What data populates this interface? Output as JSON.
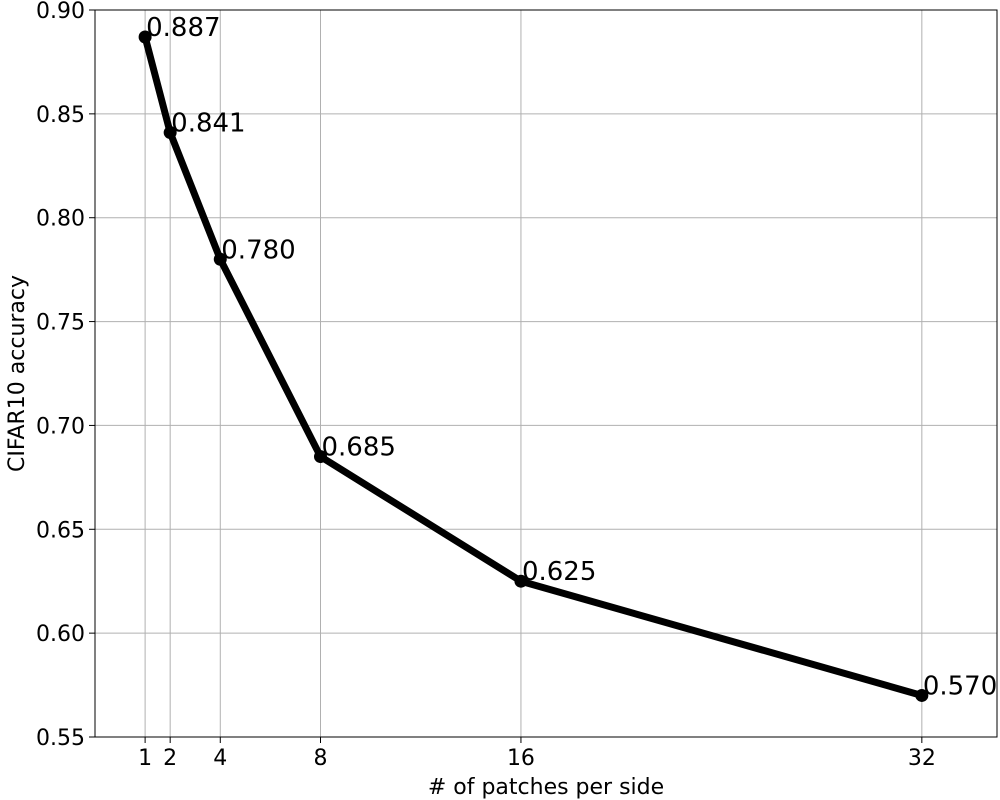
{
  "chart_data": {
    "type": "line",
    "x": [
      1,
      2,
      4,
      8,
      16,
      32
    ],
    "series": [
      {
        "values": [
          0.887,
          0.841,
          0.78,
          0.685,
          0.625,
          0.57
        ],
        "labels": [
          "0.887",
          "0.841",
          "0.780",
          "0.685",
          "0.625",
          "0.570"
        ]
      }
    ],
    "xlabel": "# of patches per side",
    "ylabel": "CIFAR10 accuracy",
    "xticks": [
      1,
      2,
      4,
      8,
      16,
      32
    ],
    "xtick_labels": [
      "1",
      "2",
      "4",
      "8",
      "16",
      "32"
    ],
    "yticks": [
      0.55,
      0.6,
      0.65,
      0.7,
      0.75,
      0.8,
      0.85,
      0.9
    ],
    "ytick_labels": [
      "0.55",
      "0.60",
      "0.65",
      "0.70",
      "0.75",
      "0.80",
      "0.85",
      "0.90"
    ],
    "xlim": [
      -1,
      35
    ],
    "ylim": [
      0.55,
      0.9
    ],
    "grid": true,
    "legend": false,
    "line_color": "#000000",
    "grid_color": "#b0b0b0"
  }
}
